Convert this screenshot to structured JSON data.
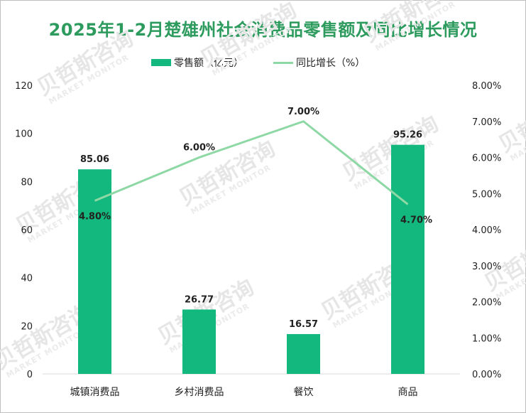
{
  "chart_data": {
    "type": "bar",
    "title": "2025年1-2月楚雄州社会消费品零售额及同比增长情况",
    "categories": [
      "城镇消费品",
      "乡村消费品",
      "餐饮",
      "商品"
    ],
    "series": [
      {
        "name": "零售额（亿元）",
        "type": "bar",
        "axis": "left",
        "values": [
          85.06,
          26.77,
          16.57,
          95.26
        ],
        "labels": [
          "85.06",
          "26.77",
          "16.57",
          "95.26"
        ],
        "color": "#12b87e"
      },
      {
        "name": "同比增长（%）",
        "type": "line",
        "axis": "right",
        "values": [
          4.8,
          6.0,
          7.0,
          4.7
        ],
        "labels": [
          "4.80%",
          "6.00%",
          "7.00%",
          "4.70%"
        ],
        "color": "#8ed8a5"
      }
    ],
    "ylim_left": [
      0,
      120
    ],
    "yticks_left": [
      "0",
      "20",
      "40",
      "60",
      "80",
      "100",
      "120"
    ],
    "ylim_right": [
      0,
      8
    ],
    "yticks_right": [
      "0.00%",
      "1.00%",
      "2.00%",
      "3.00%",
      "4.00%",
      "5.00%",
      "6.00%",
      "7.00%",
      "8.00%"
    ],
    "legend_position": "top-center",
    "grid": false,
    "watermark": {
      "text": "贝哲斯咨询",
      "sub": "MARKET MONITOR"
    }
  }
}
